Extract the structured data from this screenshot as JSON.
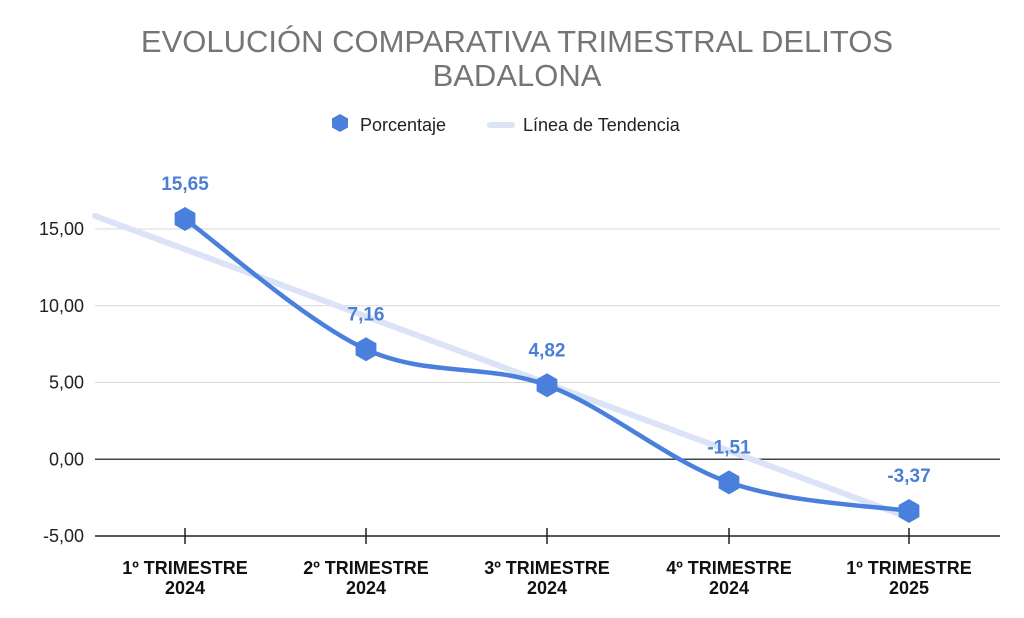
{
  "chart_data": {
    "type": "line",
    "title_lines": [
      "EVOLUCIÓN COMPARATIVA TRIMESTRAL  DELITOS",
      "BADALONA"
    ],
    "legend": {
      "position": "top",
      "entries": [
        {
          "label": "Porcentaje",
          "marker": "hexagon",
          "color": "#4a80dc"
        },
        {
          "label": "Línea de Tendencia",
          "marker": "line",
          "color": "#dbe4f7"
        }
      ]
    },
    "categories": [
      [
        "1º TRIMESTRE",
        "2024"
      ],
      [
        "2º TRIMESTRE",
        "2024"
      ],
      [
        "3º TRIMESTRE",
        "2024"
      ],
      [
        "4º TRIMESTRE",
        "2024"
      ],
      [
        "1º TRIMESTRE",
        "2025"
      ]
    ],
    "series": [
      {
        "name": "Porcentaje",
        "values": [
          15.65,
          7.16,
          4.82,
          -1.51,
          -3.37
        ],
        "color": "#4a80dc",
        "smooth": true
      },
      {
        "name": "Línea de Tendencia",
        "values": [
          13.68,
          9.31,
          4.94,
          0.57,
          -3.8
        ],
        "extended": true,
        "color": "#dbe4f7"
      }
    ],
    "data_labels": [
      "15,65",
      "7,16",
      "4,82",
      "-1,51",
      "-3,37"
    ],
    "y_ticks": [
      "15,00",
      "10,00",
      "5,00",
      "0,00",
      "-5,00"
    ],
    "y_tick_values": [
      15,
      10,
      5,
      0,
      -5
    ],
    "ylim": [
      -5,
      15
    ],
    "grid": true
  }
}
